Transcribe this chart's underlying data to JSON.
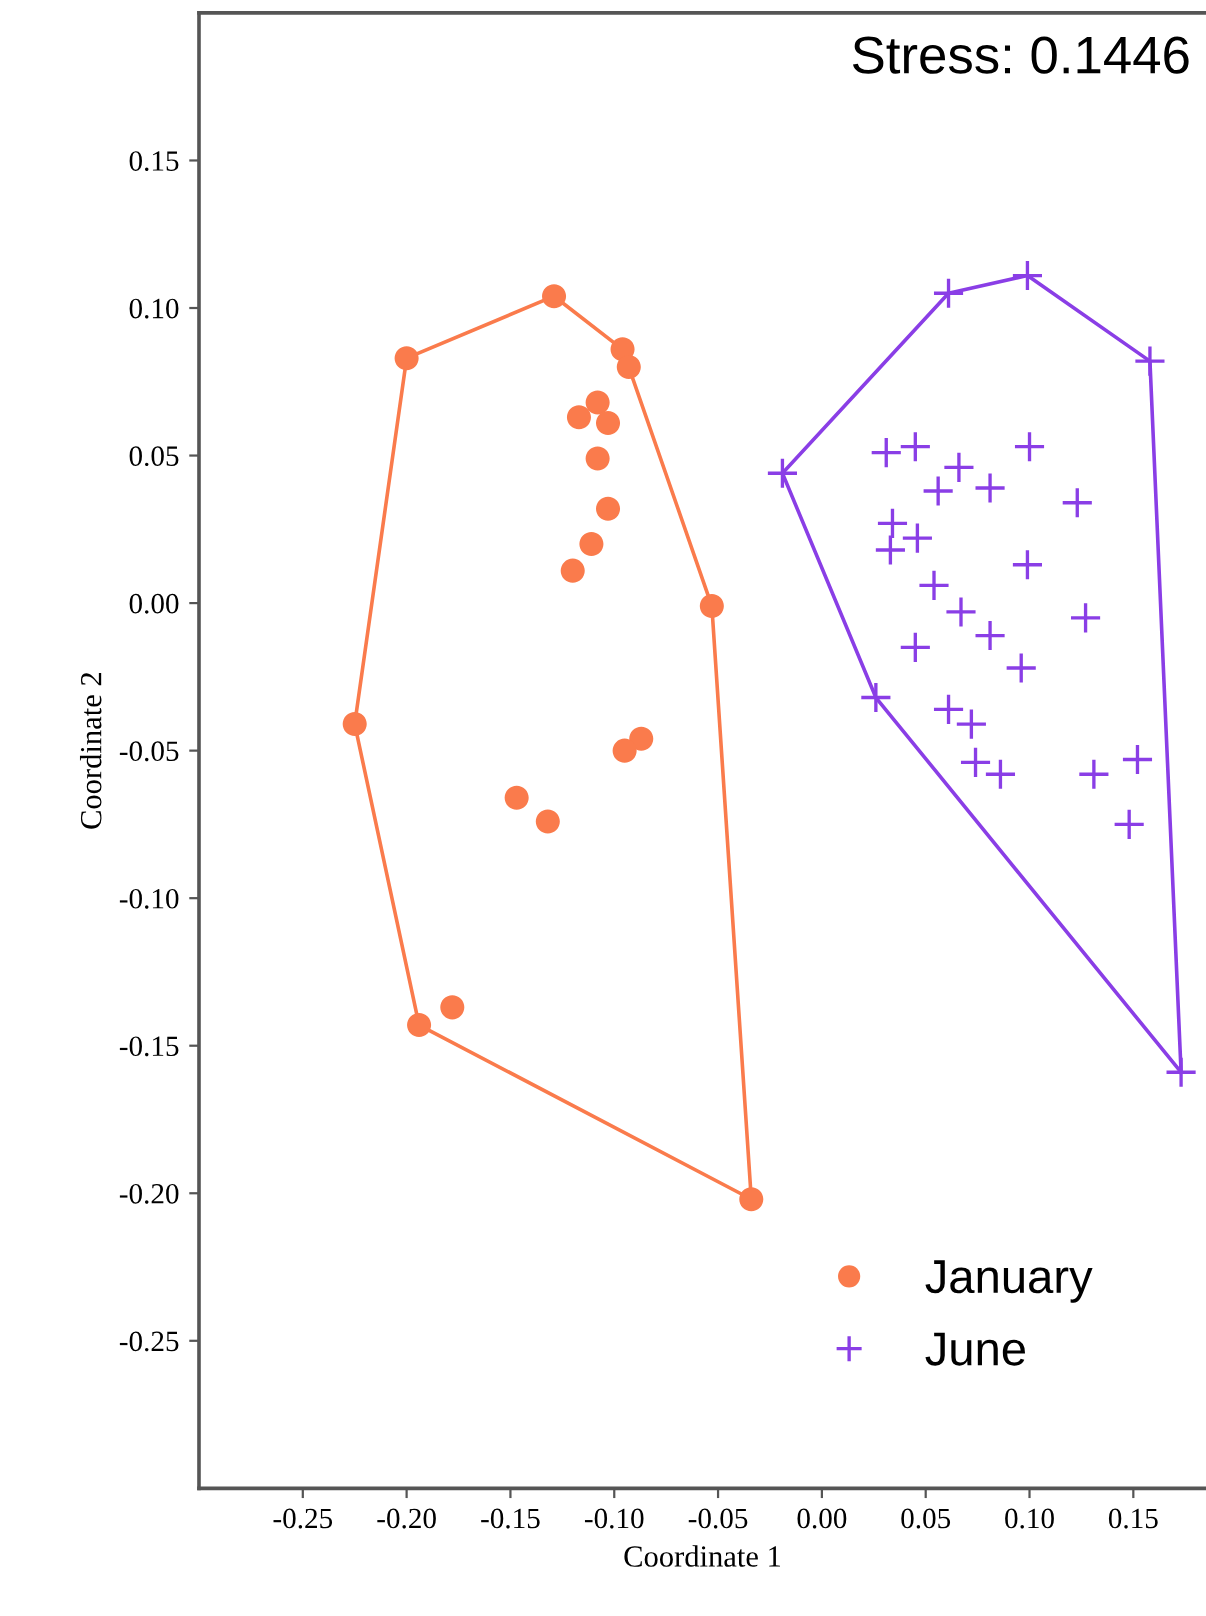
{
  "chart_data": {
    "type": "scatter",
    "xlabel": "Coordinate 1",
    "ylabel": "Coordinate 2",
    "annotations": [
      "Stress: 0.1446"
    ],
    "xlim": [
      -0.3,
      0.185
    ],
    "ylim": [
      -0.3,
      0.2
    ],
    "xticks": [
      -0.25,
      {
        "value": -0.2,
        "label": "-0.20"
      },
      -0.15,
      {
        "value": -0.1,
        "label": "-0.10"
      },
      -0.05,
      {
        "value": 0,
        "label": "0.00"
      },
      0.05,
      {
        "value": 0.1,
        "label": "0.10"
      },
      0.15
    ],
    "yticks": [
      -0.25,
      {
        "value": -0.2,
        "label": "-0.20"
      },
      -0.15,
      {
        "value": -0.1,
        "label": "-0.10"
      },
      -0.05,
      {
        "value": 0,
        "label": "0.00"
      },
      0.05,
      {
        "value": 0.1,
        "label": "0.10"
      },
      0.15
    ],
    "grid": false,
    "legend": "bottom right",
    "series": [
      {
        "name": "January",
        "marker": "circle",
        "color": "#fa7b4c",
        "x": [
          -0.2,
          -0.129,
          -0.096,
          -0.093,
          -0.108,
          -0.117,
          -0.103,
          -0.108,
          -0.103,
          -0.111,
          -0.12,
          -0.053,
          -0.225,
          -0.087,
          -0.095,
          -0.147,
          -0.132,
          -0.178,
          -0.194,
          -0.034
        ],
        "values": [
          0.083,
          0.104,
          0.086,
          0.08,
          0.068,
          0.063,
          0.061,
          0.049,
          0.032,
          0.02,
          0.011,
          -0.001,
          -0.041,
          -0.046,
          -0.05,
          -0.066,
          -0.074,
          -0.137,
          -0.143,
          -0.202
        ]
      },
      {
        "name": "June",
        "marker": "cross",
        "color": "#8a3ee6",
        "x": [
          -0.019,
          0.061,
          0.099,
          0.158,
          0.031,
          0.045,
          0.1,
          0.066,
          0.056,
          0.081,
          0.123,
          0.034,
          0.046,
          0.033,
          0.099,
          0.054,
          0.067,
          0.127,
          0.081,
          0.045,
          0.096,
          0.026,
          0.061,
          0.072,
          0.152,
          0.074,
          0.086,
          0.131,
          0.148,
          0.173
        ],
        "values": [
          0.044,
          0.105,
          0.111,
          0.082,
          0.051,
          0.053,
          0.053,
          0.046,
          0.038,
          0.039,
          0.034,
          0.027,
          0.022,
          0.018,
          0.013,
          0.006,
          -0.003,
          -0.005,
          -0.011,
          -0.015,
          -0.022,
          -0.032,
          -0.036,
          -0.041,
          -0.053,
          -0.054,
          -0.058,
          -0.058,
          -0.075,
          -0.159
        ]
      },
      {
        "type": "line",
        "marker": "none",
        "color": "#fa7b4c",
        "x": [
          -0.225,
          -0.2,
          -0.129,
          -0.096,
          -0.093,
          -0.053,
          -0.034
        ],
        "values": [
          -0.041,
          0.083,
          0.104,
          0.086,
          0.08,
          -0.001,
          -0.202
        ]
      },
      {
        "type": "line",
        "marker": "none",
        "color": "#fa7b4c",
        "x": [
          -0.225,
          -0.194,
          -0.034
        ],
        "values": [
          -0.041,
          -0.143,
          -0.202
        ]
      },
      {
        "type": "line",
        "marker": "none",
        "color": "#8a3ee6",
        "x": [
          -0.019,
          0.061,
          0.099,
          0.158,
          0.173
        ],
        "values": [
          0.044,
          0.105,
          0.111,
          0.082,
          -0.159
        ]
      },
      {
        "type": "line",
        "marker": "none",
        "color": "#8a3ee6",
        "x": [
          -0.019,
          0.026,
          0.173
        ],
        "values": [
          0.044,
          -0.032,
          -0.159
        ]
      }
    ]
  }
}
